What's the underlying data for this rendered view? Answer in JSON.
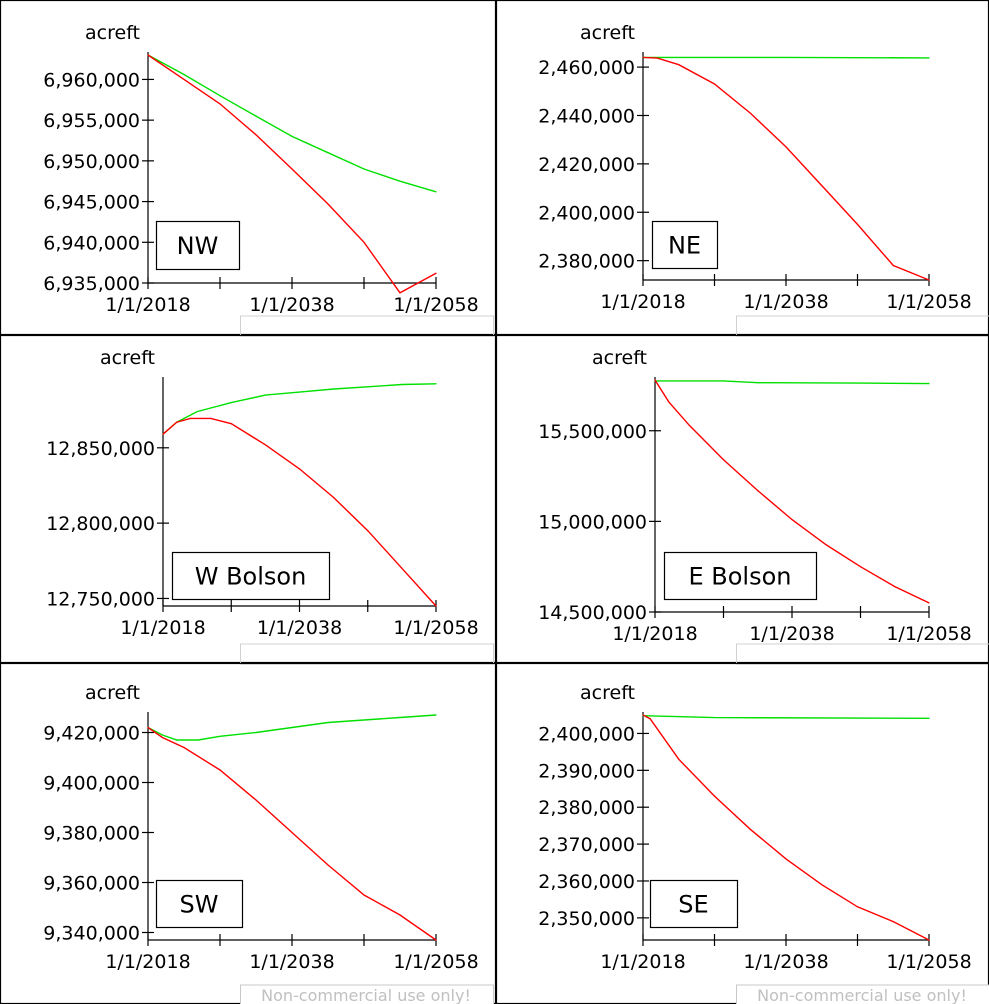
{
  "colors": {
    "series_a": "#ff0000",
    "series_b": "#00e000",
    "axis": "#000000",
    "watermark": "#c0c0c0"
  },
  "watermark": "Non-commercial use only!",
  "chart_data": [
    {
      "type": "line",
      "label": "NW",
      "unit": "acreft",
      "xticks": [
        "1/1/2018",
        "1/1/2038",
        "1/1/2058"
      ],
      "xlim": [
        2018,
        2058
      ],
      "ylim": [
        6935000,
        6963000
      ],
      "yticks": [
        6935000,
        6940000,
        6945000,
        6950000,
        6955000,
        6960000
      ],
      "ytick_labels": [
        "6,935,000",
        "6,940,000",
        "6,945,000",
        "6,950,000",
        "6,955,000",
        "6,960,000"
      ],
      "series": [
        {
          "color": "#ff0000",
          "x": [
            2018,
            2023,
            2028,
            2033,
            2038,
            2043,
            2048,
            2053,
            2058
          ],
          "y": [
            6963000,
            6960000,
            6957000,
            6953200,
            6949000,
            6944700,
            6940000,
            6933800,
            6936200
          ]
        },
        {
          "color": "#00e000",
          "x": [
            2018,
            2023,
            2028,
            2033,
            2038,
            2043,
            2048,
            2053,
            2058
          ],
          "y": [
            6963000,
            6960600,
            6958000,
            6955500,
            6953000,
            6951000,
            6949000,
            6947500,
            6946200
          ]
        }
      ]
    },
    {
      "type": "line",
      "label": "NE",
      "unit": "acreft",
      "xticks": [
        "1/1/2018",
        "1/1/2038",
        "1/1/2058"
      ],
      "xlim": [
        2018,
        2058
      ],
      "ylim": [
        2372000,
        2465000
      ],
      "yticks": [
        2380000,
        2400000,
        2420000,
        2440000,
        2460000
      ],
      "ytick_labels": [
        "2,380,000",
        "2,400,000",
        "2,420,000",
        "2,440,000",
        "2,460,000"
      ],
      "series": [
        {
          "color": "#ff0000",
          "x": [
            2018,
            2020,
            2023,
            2028,
            2033,
            2038,
            2043,
            2048,
            2053,
            2058
          ],
          "y": [
            2464000,
            2463700,
            2461000,
            2453000,
            2441000,
            2427000,
            2411000,
            2395000,
            2378000,
            2372000
          ]
        },
        {
          "color": "#00e000",
          "x": [
            2018,
            2038,
            2058
          ],
          "y": [
            2464000,
            2464000,
            2463800
          ]
        }
      ]
    },
    {
      "type": "line",
      "label": "W Bolson",
      "unit": "acreft",
      "xticks": [
        "1/1/2018",
        "1/1/2038",
        "1/1/2058"
      ],
      "xlim": [
        2018,
        2058
      ],
      "ylim": [
        12745000,
        12895000
      ],
      "yticks": [
        12750000,
        12800000,
        12850000
      ],
      "ytick_labels": [
        "12,750,000",
        "12,800,000",
        "12,850,000"
      ],
      "series": [
        {
          "color": "#ff0000",
          "x": [
            2018,
            2020,
            2022,
            2025,
            2028,
            2033,
            2038,
            2043,
            2048,
            2053,
            2058
          ],
          "y": [
            12859000,
            12867000,
            12869500,
            12869500,
            12866000,
            12852000,
            12836000,
            12817000,
            12795000,
            12770000,
            12745000
          ]
        },
        {
          "color": "#00e000",
          "x": [
            2018,
            2020,
            2023,
            2028,
            2033,
            2038,
            2043,
            2048,
            2053,
            2058
          ],
          "y": [
            12859000,
            12867000,
            12874000,
            12880000,
            12885000,
            12887000,
            12889000,
            12890500,
            12892000,
            12892500
          ]
        }
      ]
    },
    {
      "type": "line",
      "label": "E Bolson",
      "unit": "acreft",
      "xticks": [
        "1/1/2018",
        "1/1/2038",
        "1/1/2058"
      ],
      "xlim": [
        2018,
        2058
      ],
      "ylim": [
        14500000,
        15780000
      ],
      "yticks": [
        14500000,
        15000000,
        15500000
      ],
      "ytick_labels": [
        "14,500,000",
        "15,000,000",
        "15,500,000"
      ],
      "series": [
        {
          "color": "#ff0000",
          "x": [
            2018,
            2020,
            2023,
            2028,
            2033,
            2038,
            2043,
            2048,
            2053,
            2058
          ],
          "y": [
            15780000,
            15660000,
            15530000,
            15340000,
            15170000,
            15010000,
            14870000,
            14750000,
            14640000,
            14550000
          ]
        },
        {
          "color": "#00e000",
          "x": [
            2018,
            2028,
            2033,
            2048,
            2058
          ],
          "y": [
            15775000,
            15775000,
            15765000,
            15763000,
            15760000
          ]
        }
      ]
    },
    {
      "type": "line",
      "label": "SW",
      "unit": "acreft",
      "xticks": [
        "1/1/2018",
        "1/1/2038",
        "1/1/2058"
      ],
      "xlim": [
        2018,
        2058
      ],
      "ylim": [
        9337000,
        9427000
      ],
      "yticks": [
        9340000,
        9360000,
        9380000,
        9400000,
        9420000
      ],
      "ytick_labels": [
        "9,340,000",
        "9,360,000",
        "9,380,000",
        "9,400,000",
        "9,420,000"
      ],
      "series": [
        {
          "color": "#ff0000",
          "x": [
            2018,
            2020,
            2023,
            2028,
            2033,
            2038,
            2043,
            2048,
            2053,
            2058
          ],
          "y": [
            9422000,
            9418000,
            9414000,
            9405000,
            9393000,
            9380000,
            9367000,
            9355000,
            9347000,
            9337000
          ]
        },
        {
          "color": "#00e000",
          "x": [
            2018,
            2020,
            2022,
            2025,
            2028,
            2033,
            2038,
            2043,
            2048,
            2053,
            2058
          ],
          "y": [
            9422000,
            9419000,
            9417000,
            9417000,
            9418500,
            9420000,
            9422000,
            9424000,
            9425000,
            9426000,
            9427000
          ]
        }
      ]
    },
    {
      "type": "line",
      "label": "SE",
      "unit": "acreft",
      "xticks": [
        "1/1/2018",
        "1/1/2038",
        "1/1/2058"
      ],
      "xlim": [
        2018,
        2058
      ],
      "ylim": [
        2344000,
        2405000
      ],
      "yticks": [
        2350000,
        2360000,
        2370000,
        2380000,
        2390000,
        2400000
      ],
      "ytick_labels": [
        "2,350,000",
        "2,360,000",
        "2,370,000",
        "2,380,000",
        "2,390,000",
        "2,400,000"
      ],
      "series": [
        {
          "color": "#ff0000",
          "x": [
            2018,
            2019,
            2023,
            2028,
            2033,
            2038,
            2043,
            2048,
            2053,
            2058
          ],
          "y": [
            2405000,
            2404000,
            2393000,
            2383000,
            2374000,
            2366000,
            2359000,
            2353000,
            2349000,
            2344000
          ]
        },
        {
          "color": "#00e000",
          "x": [
            2018,
            2028,
            2058
          ],
          "y": [
            2404800,
            2404300,
            2404100
          ]
        }
      ]
    }
  ]
}
